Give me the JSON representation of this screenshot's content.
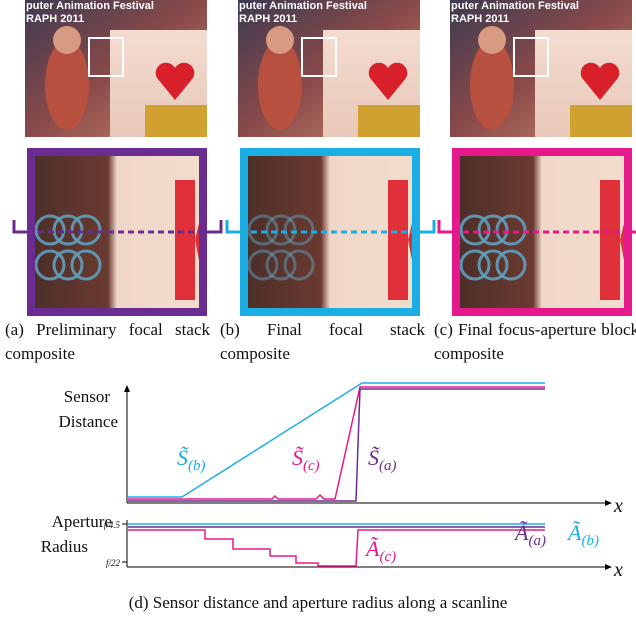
{
  "panels": [
    {
      "poster_line1": "puter Animation Festival",
      "poster_line2": "RAPH 2011",
      "caption": "(a) Preliminary focal stack composite"
    },
    {
      "poster_line1": "puter Animation Festival",
      "poster_line2": "RAPH 2011",
      "caption": "(b) Final focal stack composite"
    },
    {
      "poster_line1": "puter Animation Festival",
      "poster_line2": "RAPH 2011",
      "caption": "(c) Final focus-aperture block composite"
    }
  ],
  "plot": {
    "sensor_label": [
      "Sensor",
      "Distance"
    ],
    "aperture_label": [
      "Aperture",
      "Radius"
    ],
    "x_label_top": "x",
    "x_label_bottom": "x",
    "f_high": "f/4.5",
    "f_low": "f/22",
    "curve_labels": [
      {
        "symbol": "S̃",
        "subscript": "(b)"
      },
      {
        "symbol": "S̃",
        "subscript": "(c)"
      },
      {
        "symbol": "S̃",
        "subscript": "(a)"
      },
      {
        "symbol": "Ã",
        "subscript": "(a)"
      },
      {
        "symbol": "Ã",
        "subscript": "(b)"
      },
      {
        "symbol": "Ã",
        "subscript": "(c)"
      }
    ]
  },
  "caption": "(d) Sensor distance and aperture radius along a scanline"
}
